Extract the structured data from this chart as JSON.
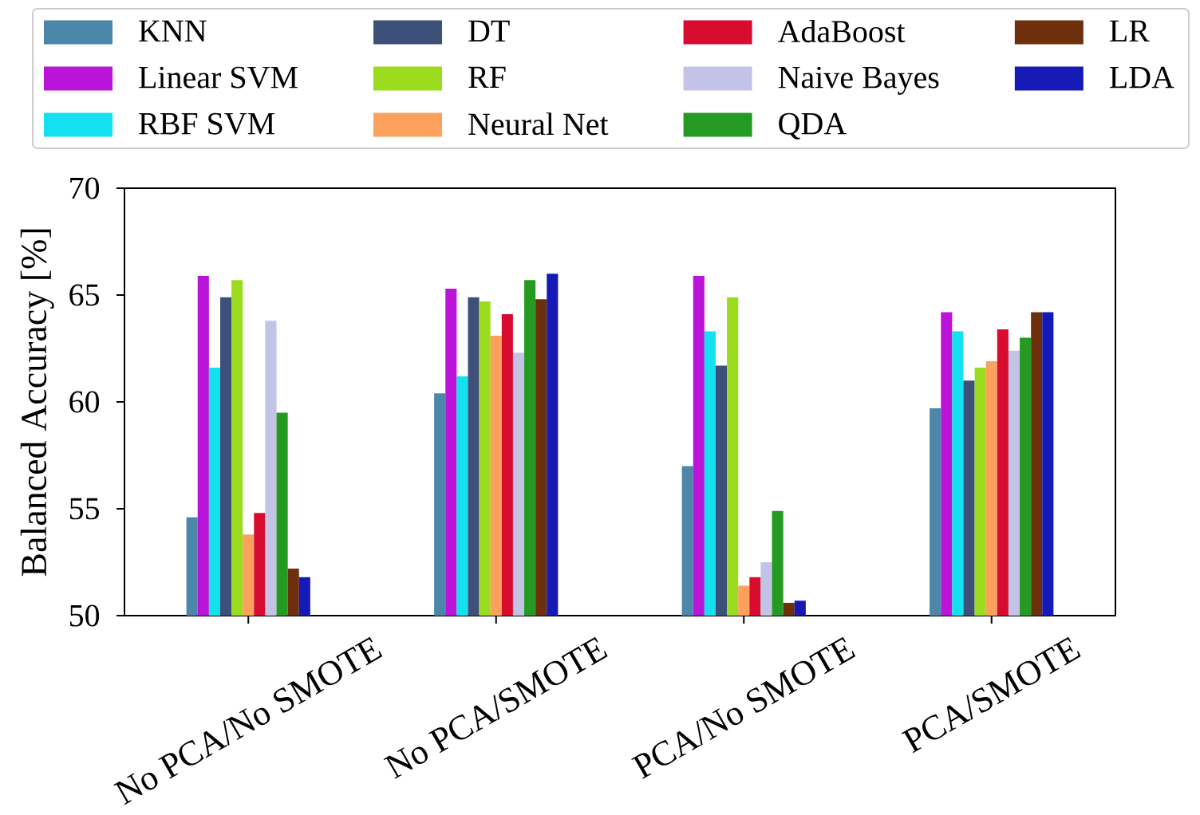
{
  "chart_data": {
    "type": "bar",
    "ylabel": "Balanced Accuracy [%]",
    "categories": [
      "No PCA/No SMOTE",
      "No PCA/SMOTE",
      "PCA/No SMOTE",
      "PCA/SMOTE"
    ],
    "series": [
      {
        "name": "KNN",
        "color": "#4c86a8",
        "values": [
          54.6,
          60.4,
          57.0,
          59.7
        ]
      },
      {
        "name": "Linear SVM",
        "color": "#bb14d9",
        "values": [
          65.9,
          65.3,
          65.9,
          64.2
        ]
      },
      {
        "name": "RBF SVM",
        "color": "#14e1f0",
        "values": [
          61.6,
          61.2,
          63.3,
          63.3
        ]
      },
      {
        "name": "DT",
        "color": "#3d5079",
        "values": [
          64.9,
          64.9,
          61.7,
          61.0
        ]
      },
      {
        "name": "RF",
        "color": "#9cdc1f",
        "values": [
          65.7,
          64.7,
          64.9,
          61.6
        ]
      },
      {
        "name": "Neural Net",
        "color": "#fba15d",
        "values": [
          53.8,
          63.1,
          51.4,
          61.9
        ]
      },
      {
        "name": "AdaBoost",
        "color": "#d80c2f",
        "values": [
          54.8,
          64.1,
          51.8,
          63.4
        ]
      },
      {
        "name": "Naive Bayes",
        "color": "#c3c3e8",
        "values": [
          63.8,
          62.3,
          52.5,
          62.4
        ]
      },
      {
        "name": "QDA",
        "color": "#249a22",
        "values": [
          59.5,
          65.7,
          54.9,
          63.0
        ]
      },
      {
        "name": "LR",
        "color": "#6e300c",
        "values": [
          52.2,
          64.8,
          50.6,
          64.2
        ]
      },
      {
        "name": "LDA",
        "color": "#1519b6",
        "values": [
          51.8,
          66.0,
          50.7,
          64.2
        ]
      }
    ],
    "ylim": [
      50,
      70
    ],
    "yticks": [
      50,
      55,
      60,
      65,
      70
    ],
    "legend": "top"
  }
}
